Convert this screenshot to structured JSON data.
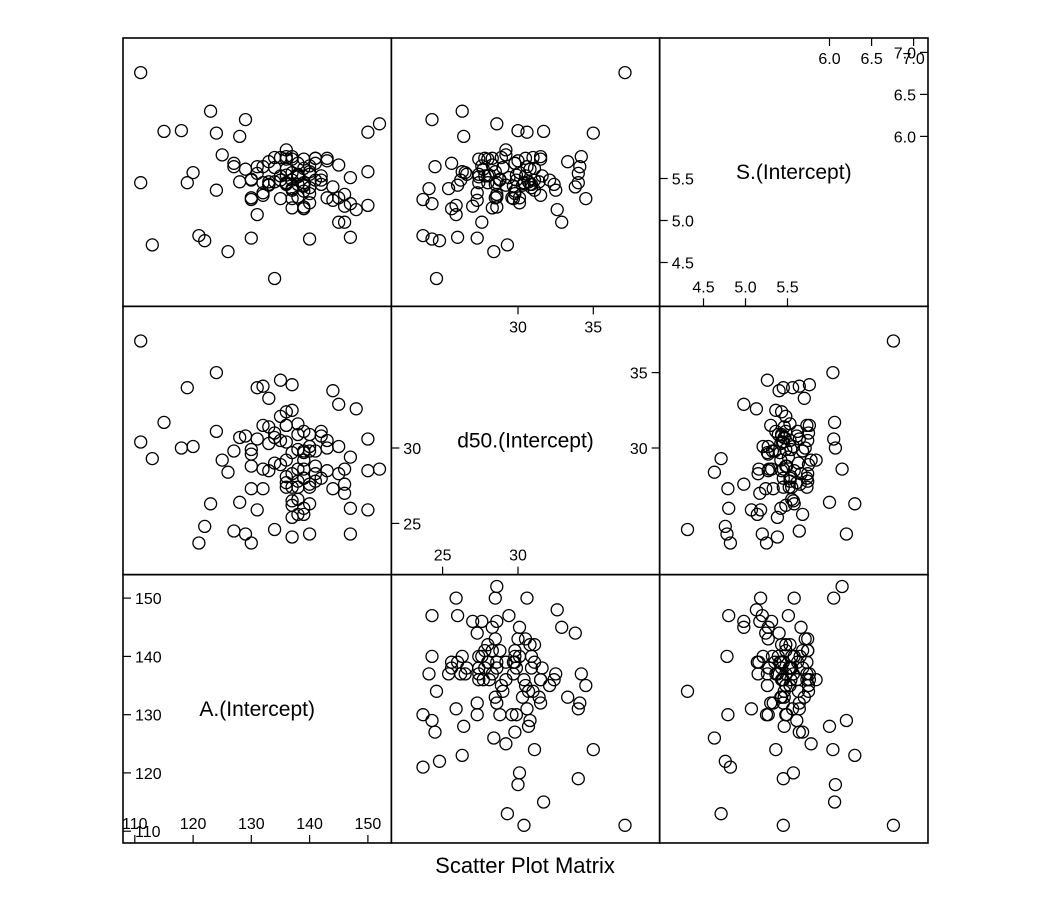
{
  "chart_data": {
    "type": "scatter",
    "title": "Scatter Plot Matrix",
    "variables": [
      {
        "name": "A.(Intercept)",
        "range": [
          109,
          153
        ],
        "ticks": [
          110,
          120,
          130,
          140,
          150
        ],
        "tick_labels_lower": [
          "110",
          "120",
          "130",
          "140",
          "150"
        ]
      },
      {
        "name": "d50.(Intercept)",
        "range": [
          22,
          39
        ],
        "ticks": [
          25,
          30,
          35
        ],
        "tick_labels_lower": [
          "25",
          "30"
        ],
        "tick_labels_upper": [
          "30",
          "35"
        ]
      },
      {
        "name": "S.(Intercept)",
        "range": [
          4.05,
          7.1
        ],
        "ticks": [
          4.5,
          5.0,
          5.5,
          6.0,
          6.5,
          7.0
        ],
        "tick_labels_lower": [
          "4.5",
          "5.0",
          "5.5"
        ],
        "tick_labels_upper": [
          "6.0",
          "6.5",
          "7.0"
        ]
      }
    ],
    "points": {
      "A": [
        152,
        150,
        150,
        150,
        148,
        147,
        147,
        147,
        146,
        146,
        146,
        145,
        145,
        145,
        144,
        144,
        143,
        143,
        143,
        142,
        142,
        142,
        141,
        141,
        141,
        141,
        140,
        140,
        140,
        140,
        140,
        140,
        140,
        139,
        139,
        139,
        139,
        139,
        139,
        139,
        139,
        139,
        138,
        138,
        138,
        138,
        138,
        138,
        138,
        138,
        137,
        137,
        137,
        137,
        137,
        137,
        137,
        137,
        137,
        136,
        136,
        136,
        136,
        136,
        136,
        136,
        136,
        135,
        135,
        135,
        135,
        134,
        134,
        134,
        134,
        133,
        133,
        133,
        133,
        132,
        132,
        132,
        132,
        131,
        131,
        131,
        130,
        130,
        130,
        130,
        130,
        129,
        129,
        128,
        128,
        127,
        127,
        126,
        125,
        124,
        124,
        123,
        122,
        121,
        120,
        119,
        118,
        115,
        113,
        111,
        111
      ],
      "d50": [
        28.6,
        25.9,
        28.5,
        30.6,
        32.6,
        24.3,
        26.0,
        29.4,
        27.6,
        27.0,
        28.6,
        28.3,
        30.1,
        32.9,
        33.8,
        27.3,
        28.5,
        30.5,
        30.0,
        28.0,
        30.8,
        31.1,
        28.3,
        27.8,
        28.8,
        29.8,
        27.6,
        29.8,
        30.9,
        26.3,
        27.4,
        30.1,
        24.3,
        26.0,
        31.1,
        28.0,
        29.2,
        29.7,
        29.8,
        28.6,
        28.0,
        25.6,
        26.6,
        31.6,
        27.8,
        30.9,
        25.6,
        28.6,
        29.9,
        27.4,
        28.3,
        26.5,
        26.2,
        34.2,
        29.7,
        25.4,
        32.5,
        27.4,
        24.1,
        27.7,
        31.5,
        28.1,
        29.2,
        31.5,
        27.4,
        30.4,
        32.4,
        30.5,
        28.9,
        32.1,
        34.5,
        31.0,
        29.0,
        24.6,
        30.7,
        31.4,
        28.5,
        30.3,
        33.3,
        34.1,
        28.6,
        27.3,
        31.5,
        25.9,
        30.6,
        34.0,
        28.8,
        23.7,
        29.9,
        29.6,
        27.3,
        24.3,
        30.8,
        30.7,
        26.4,
        29.8,
        24.5,
        28.4,
        29.2,
        31.1,
        35.0,
        26.3,
        24.8,
        23.7,
        30.1,
        34.0,
        30.0,
        31.7,
        29.3,
        37.1,
        30.4
      ],
      "S": [
        6.15,
        5.18,
        5.58,
        6.05,
        5.13,
        5.2,
        4.8,
        5.51,
        4.98,
        5.17,
        5.31,
        5.66,
        5.27,
        4.98,
        5.4,
        5.24,
        5.27,
        5.74,
        5.71,
        5.53,
        5.43,
        5.48,
        5.74,
        5.74,
        5.48,
        5.68,
        5.65,
        5.32,
        5.39,
        5.58,
        5.55,
        5.21,
        4.78,
        5.42,
        5.62,
        5.45,
        5.42,
        5.41,
        5.35,
        5.16,
        5.73,
        5.14,
        5.55,
        5.53,
        5.53,
        5.43,
        5.68,
        5.28,
        5.54,
        5.52,
        5.15,
        5.57,
        5.48,
        5.76,
        5.26,
        5.38,
        5.36,
        5.73,
        5.38,
        5.61,
        5.76,
        5.54,
        5.84,
        5.73,
        5.45,
        5.44,
        5.43,
        5.53,
        5.75,
        5.48,
        5.26,
        5.75,
        5.63,
        4.31,
        5.46,
        5.46,
        5.43,
        5.42,
        5.7,
        5.64,
        5.45,
        5.33,
        5.3,
        5.07,
        5.64,
        5.56,
        5.49,
        5.25,
        5.48,
        5.27,
        4.79,
        6.2,
        5.61,
        5.46,
        6.0,
        5.68,
        5.64,
        4.63,
        5.78,
        5.36,
        6.04,
        6.3,
        4.76,
        4.82,
        5.57,
        5.45,
        6.07,
        6.06,
        4.71,
        6.76,
        5.45
      ]
    }
  }
}
